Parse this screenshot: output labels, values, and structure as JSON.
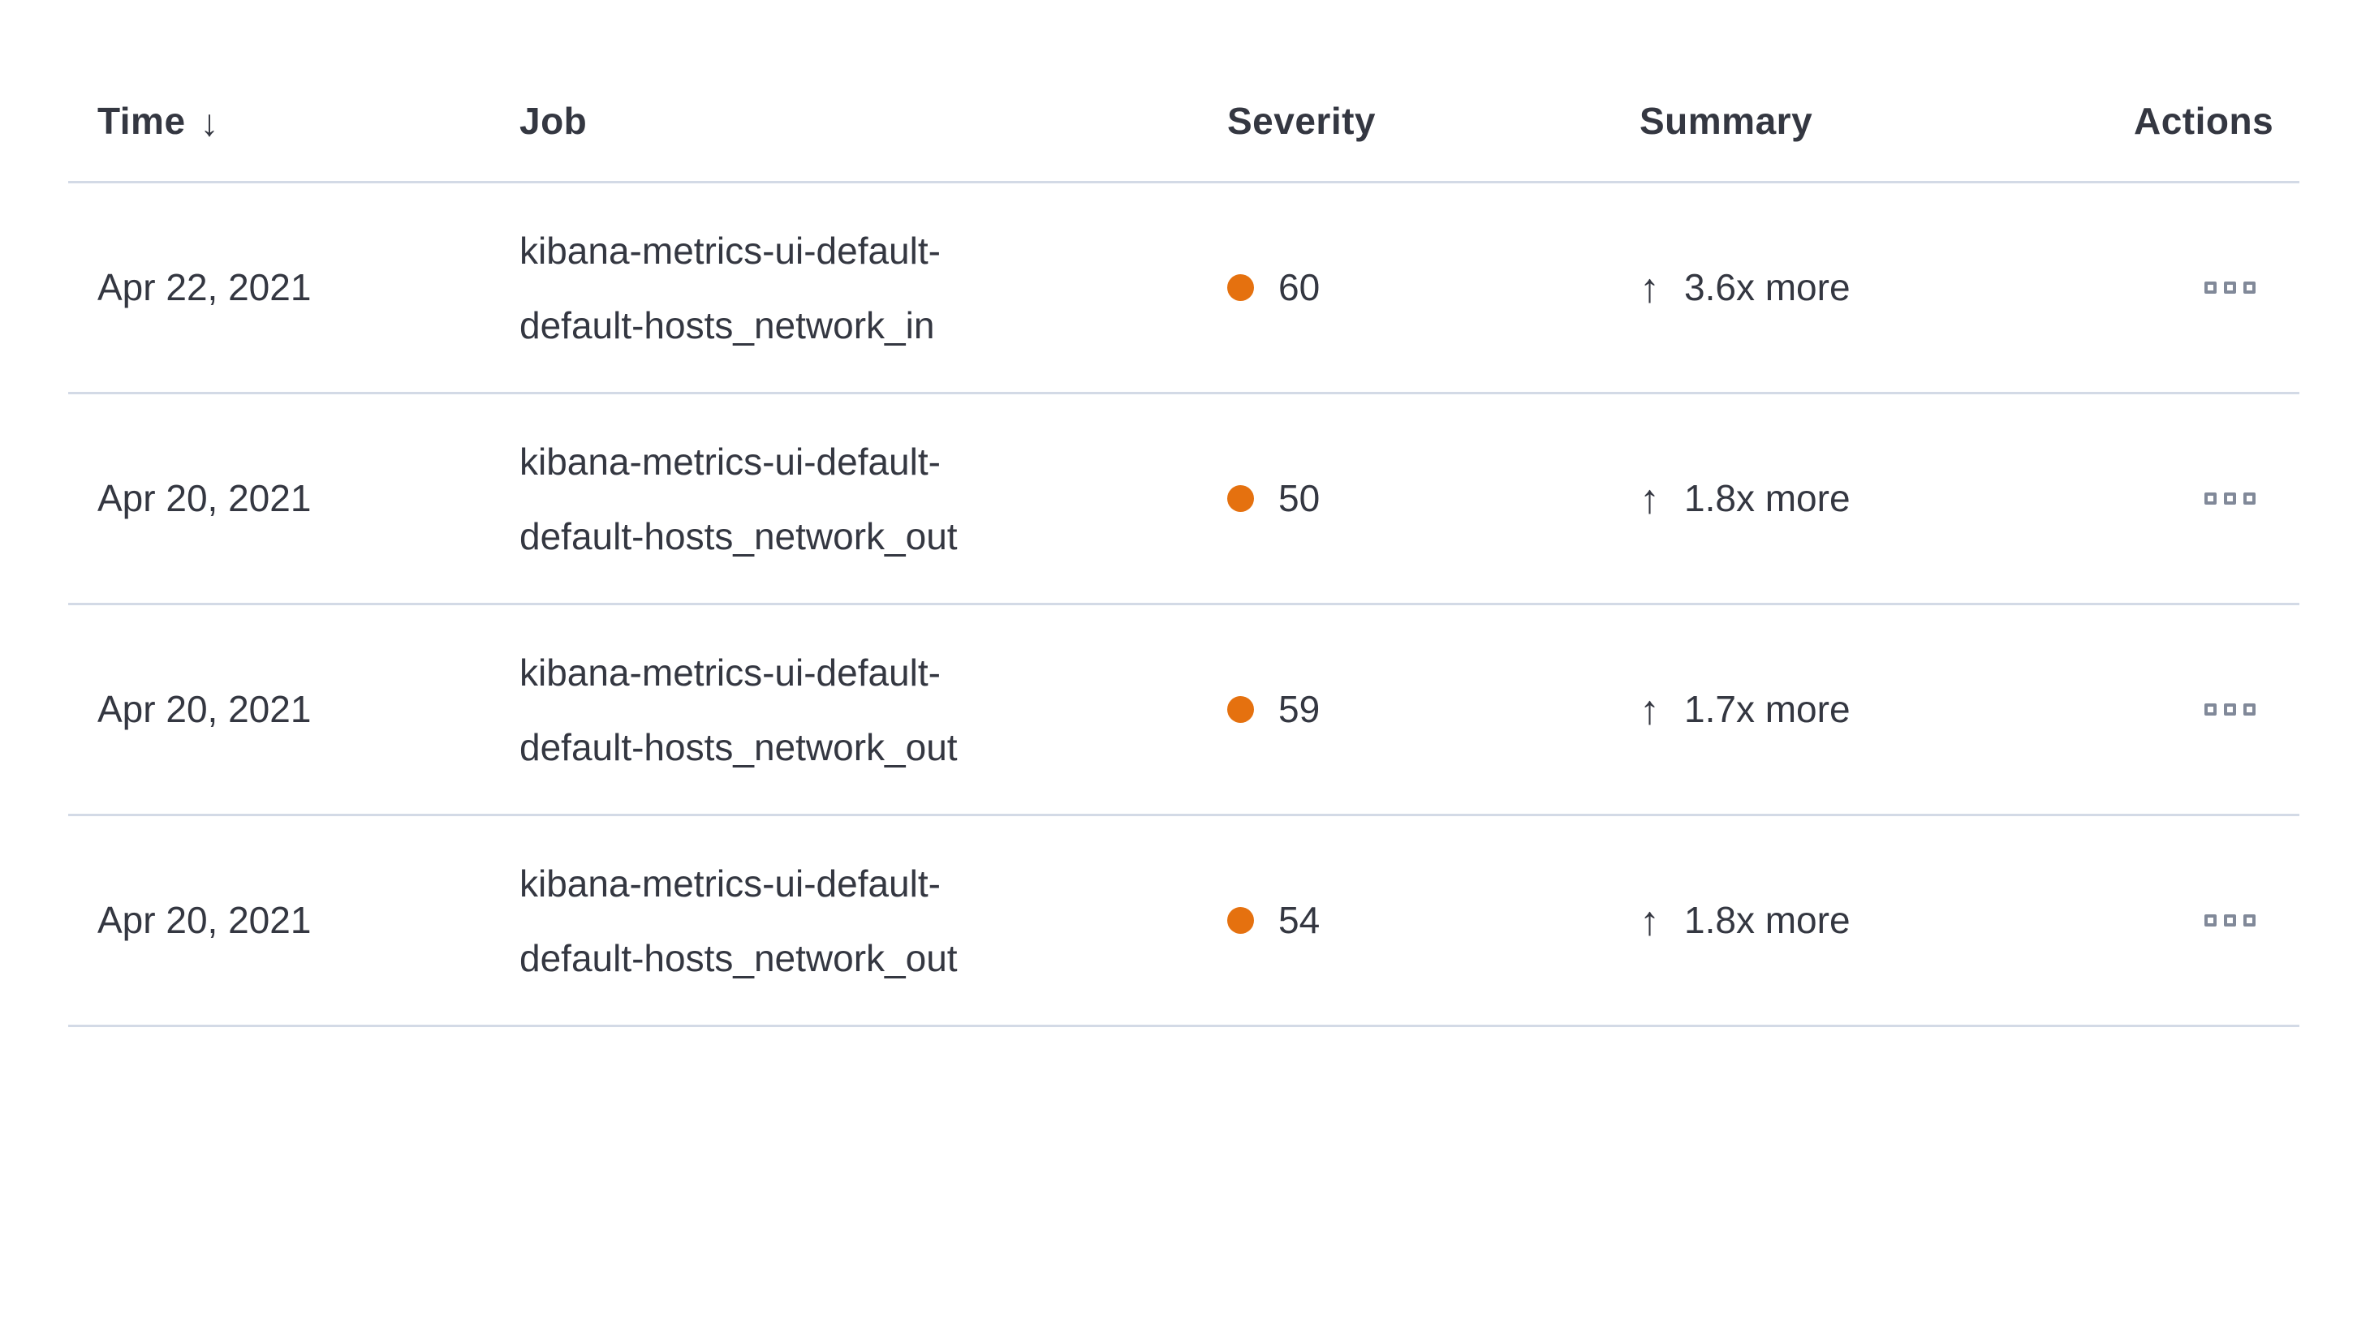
{
  "table": {
    "columns": [
      {
        "key": "time",
        "label": "Time",
        "sortable": true,
        "sort_direction": "desc",
        "sort_icon": "↓"
      },
      {
        "key": "job",
        "label": "Job"
      },
      {
        "key": "severity",
        "label": "Severity"
      },
      {
        "key": "summary",
        "label": "Summary"
      },
      {
        "key": "actions",
        "label": "Actions"
      }
    ],
    "rows": [
      {
        "time": "Apr 22, 2021",
        "job": "kibana-metrics-ui-default-default-hosts_network_in",
        "severity": "60",
        "summary_arrow": "↑",
        "summary": "3.6x more",
        "actions_icon": "boxes-horizontal"
      },
      {
        "time": "Apr 20, 2021",
        "job": "kibana-metrics-ui-default-default-hosts_network_out",
        "severity": "50",
        "summary_arrow": "↑",
        "summary": "1.8x more",
        "actions_icon": "boxes-horizontal"
      },
      {
        "time": "Apr 20, 2021",
        "job": "kibana-metrics-ui-default-default-hosts_network_out",
        "severity": "59",
        "summary_arrow": "↑",
        "summary": "1.7x more",
        "actions_icon": "boxes-horizontal"
      },
      {
        "time": "Apr 20, 2021",
        "job": "kibana-metrics-ui-default-default-hosts_network_out",
        "severity": "54",
        "summary_arrow": "↑",
        "summary": "1.8x more",
        "actions_icon": "boxes-horizontal"
      }
    ]
  },
  "colors": {
    "severity_dot": "#e5710f",
    "divider": "#d3dae6",
    "text": "#343741",
    "actions_icon_gray": "#818999",
    "background": "#ffffff"
  }
}
